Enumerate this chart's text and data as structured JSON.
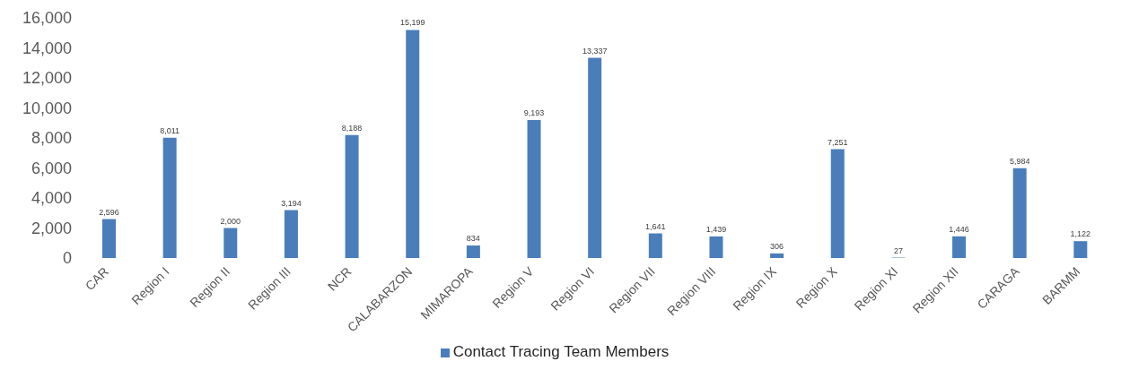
{
  "chart_data": {
    "type": "bar",
    "categories": [
      "CAR",
      "Region I",
      "Region II",
      "Region III",
      "NCR",
      "CALABARZON",
      "MIMAROPA",
      "Region V",
      "Region VI",
      "Region VII",
      "Region VIII",
      "Region IX",
      "Region X",
      "Region XI",
      "Region XII",
      "CARAGA",
      "BARMM"
    ],
    "series": [
      {
        "name": "Contact Tracing Team Members",
        "color": "#4a7ebb",
        "values": [
          2596,
          8011,
          2000,
          3194,
          8188,
          15199,
          834,
          9193,
          13337,
          1641,
          1439,
          306,
          7251,
          27,
          1446,
          5984,
          1122
        ],
        "value_labels": [
          "2,596",
          "8,011",
          "2,000",
          "3,194",
          "8,188",
          "15,199",
          "834",
          "9,193",
          "13,337",
          "1,641",
          "1,439",
          "306",
          "7,251",
          "27",
          "1,446",
          "5,984",
          "1,122"
        ]
      }
    ],
    "ylim": [
      0,
      16000
    ],
    "yticks": [
      0,
      {
        "value": 2000,
        "label": "2,000"
      },
      {
        "value": 4000,
        "label": "4,000"
      },
      {
        "value": 6000,
        "label": "6,000"
      },
      {
        "value": 8000,
        "label": "8,000"
      },
      {
        "value": 10000,
        "label": "10,000"
      },
      {
        "value": 12000,
        "label": "12,000"
      },
      {
        "value": 14000,
        "label": "14,000"
      },
      {
        "value": 16000,
        "label": "16,000"
      }
    ],
    "legend": "bottom",
    "grid": false
  }
}
